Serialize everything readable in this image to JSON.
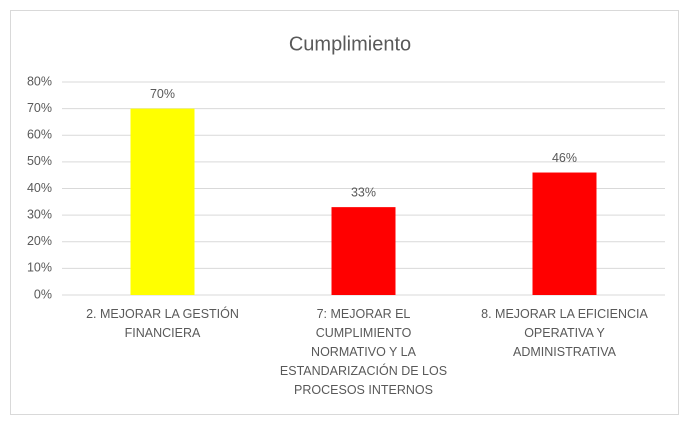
{
  "chart_data": {
    "type": "bar",
    "title": "Cumplimiento",
    "categories": [
      [
        "2. MEJORAR LA GESTIÓN",
        "FINANCIERA"
      ],
      [
        "7: MEJORAR EL",
        "CUMPLIMIENTO",
        "NORMATIVO Y LA",
        "ESTANDARIZACIÓN DE LOS",
        "PROCESOS INTERNOS"
      ],
      [
        "8. MEJORAR LA EFICIENCIA",
        "OPERATIVA Y",
        "ADMINISTRATIVA"
      ]
    ],
    "values": [
      70,
      33,
      46
    ],
    "value_labels": [
      "70%",
      "33%",
      "46%"
    ],
    "colors": [
      "#ffff00",
      "#ff0000",
      "#ff0000"
    ],
    "ylim": [
      0,
      80
    ],
    "yticks": [
      {
        "value": 0,
        "label": "0%"
      },
      {
        "value": 10,
        "label": "10%"
      },
      {
        "value": 20,
        "label": "20%"
      },
      {
        "value": 30,
        "label": "30%"
      },
      {
        "value": 40,
        "label": "40%"
      },
      {
        "value": 50,
        "label": "50%"
      },
      {
        "value": 60,
        "label": "60%"
      },
      {
        "value": 70,
        "label": "70%"
      },
      {
        "value": 80,
        "label": "80%"
      }
    ],
    "grid": true
  }
}
